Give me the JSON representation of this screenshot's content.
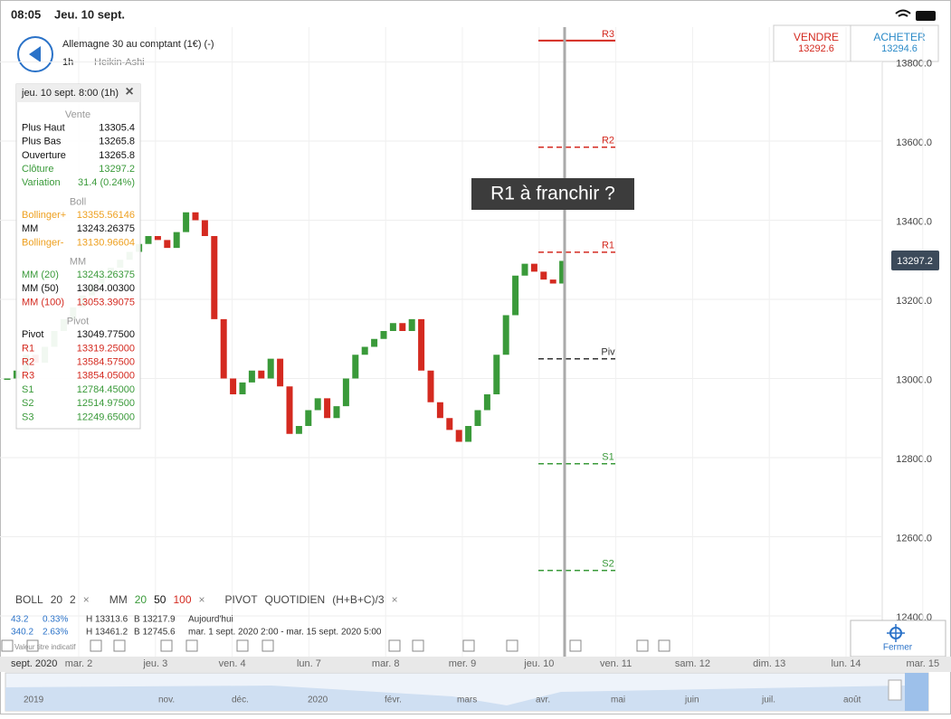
{
  "status": {
    "time": "08:05",
    "date": "Jeu. 10 sept."
  },
  "header": {
    "instrument": "Allemagne 30 au comptant (1€) (-)",
    "interval": "1h",
    "style": "Heikin-Ashi"
  },
  "quote": {
    "sell_label": "VENDRE",
    "sell_price": "13292.6",
    "buy_label": "ACHETER",
    "buy_price": "13294.6"
  },
  "chart_data": {
    "type": "candlestick",
    "annotation": "R1 à franchir ?",
    "last_price": "13297.2",
    "up_color": "#3a9a3a",
    "down_color": "#d42a20",
    "values": [
      13000,
      13020,
      13060,
      13040,
      13080,
      13120,
      13150,
      13180,
      13210,
      13240,
      13260,
      13280,
      13300,
      13320,
      13340,
      13360,
      13350,
      13330,
      13370,
      13420,
      13400,
      13360,
      13150,
      13000,
      12960,
      12990,
      13020,
      13000,
      13050,
      12980,
      12860,
      12880,
      12920,
      12950,
      12900,
      12930,
      13000,
      13060,
      13080,
      13100,
      13120,
      13140,
      13120,
      13150,
      13020,
      12940,
      12900,
      12870,
      12840,
      12880,
      12920,
      12960,
      13060,
      13160,
      13260,
      13290,
      13270,
      13250,
      13240,
      13297.2
    ],
    "ylim": [
      12400,
      13800
    ],
    "yticks": [
      {
        "value": 12400,
        "label": "12400.0"
      },
      {
        "value": 12600,
        "label": "12600.0"
      },
      {
        "value": 12800,
        "label": "12800.0"
      },
      {
        "value": 13000,
        "label": "13000.0"
      },
      {
        "value": 13200,
        "label": "13200.0"
      },
      {
        "value": 13400,
        "label": "13400.0"
      },
      {
        "value": 13600,
        "label": "13600.0"
      },
      {
        "value": 13800,
        "label": "13800.0"
      }
    ],
    "grid": true,
    "levels": [
      {
        "name": "R3",
        "value": 13854.05,
        "color": "#d42a20"
      },
      {
        "name": "R2",
        "value": 13584.575,
        "color": "#d42a20"
      },
      {
        "name": "R1",
        "value": 13319.25,
        "color": "#d42a20"
      },
      {
        "name": "Piv",
        "value": 13049.775,
        "color": "#333333"
      },
      {
        "name": "S1",
        "value": 12784.45,
        "color": "#3a9a3a"
      },
      {
        "name": "S2",
        "value": 12514.975,
        "color": "#3a9a3a"
      }
    ]
  },
  "info_panel": {
    "title": "jeu. 10 sept. 8:00 (1h)",
    "close": "×",
    "sections": [
      {
        "title": "Vente",
        "rows": [
          {
            "label": "Plus Haut",
            "value": "13305.4",
            "color": "#111111"
          },
          {
            "label": "Plus Bas",
            "value": "13265.8",
            "color": "#111111"
          },
          {
            "label": "Ouverture",
            "value": "13265.8",
            "color": "#111111"
          },
          {
            "label": "Clôture",
            "value": "13297.2",
            "color": "#3a9a3a"
          },
          {
            "label": "Variation",
            "value": "31.4 (0.24%)",
            "color": "#3a9a3a"
          }
        ]
      },
      {
        "title": "Boll",
        "rows": [
          {
            "label": "Bollinger+",
            "value": "13355.56146",
            "color": "#eea020"
          },
          {
            "label": "MM",
            "value": "13243.26375",
            "color": "#111111"
          },
          {
            "label": "Bollinger-",
            "value": "13130.96604",
            "color": "#eea020"
          }
        ]
      },
      {
        "title": "MM",
        "rows": [
          {
            "label": "MM (20)",
            "value": "13243.26375",
            "color": "#3a9a3a"
          },
          {
            "label": "MM (50)",
            "value": "13084.00300",
            "color": "#111111"
          },
          {
            "label": "MM (100)",
            "value": "13053.39075",
            "color": "#d42a20"
          }
        ]
      },
      {
        "title": "Pivot",
        "rows": [
          {
            "label": "Pivot",
            "value": "13049.77500",
            "color": "#111111"
          },
          {
            "label": "R1",
            "value": "13319.25000",
            "color": "#d42a20"
          },
          {
            "label": "R2",
            "value": "13584.57500",
            "color": "#d42a20"
          },
          {
            "label": "R3",
            "value": "13854.05000",
            "color": "#d42a20"
          },
          {
            "label": "S1",
            "value": "12784.45000",
            "color": "#3a9a3a"
          },
          {
            "label": "S2",
            "value": "12514.97500",
            "color": "#3a9a3a"
          },
          {
            "label": "S3",
            "value": "12249.65000",
            "color": "#3a9a3a"
          }
        ]
      }
    ]
  },
  "indicator_bar": [
    {
      "items": [
        {
          "text": "BOLL",
          "color": "#444444"
        },
        {
          "text": "20",
          "color": "#444444"
        },
        {
          "text": "2",
          "color": "#444444"
        },
        {
          "text": "×",
          "color": "#888888"
        }
      ]
    },
    {
      "items": [
        {
          "text": "MM",
          "color": "#444444"
        },
        {
          "text": "20",
          "color": "#3a9a3a"
        },
        {
          "text": "50",
          "color": "#111111"
        },
        {
          "text": "100",
          "color": "#d42a20"
        },
        {
          "text": "×",
          "color": "#888888"
        }
      ]
    },
    {
      "items": [
        {
          "text": "PIVOT",
          "color": "#444444"
        },
        {
          "text": "QUOTIDIEN",
          "color": "#444444"
        },
        {
          "text": "(H+B+C)/3",
          "color": "#444444"
        },
        {
          "text": "×",
          "color": "#888888"
        }
      ]
    }
  ],
  "stats": [
    [
      "43.2",
      "0.33%",
      "H 13313.6",
      "B 13217.9",
      "Aujourd'hui"
    ],
    [
      "340.2",
      "2.63%",
      "H 13461.2",
      "B 12745.6",
      "mar. 1 sept. 2020 2:00 - mar. 15 sept. 2020 5:00"
    ]
  ],
  "disclaimer": "Valeur titre indicatif",
  "close_button": "Fermer",
  "time_axis": {
    "period": "sept. 2020",
    "days": [
      "mar. 2",
      "jeu. 3",
      "ven. 4",
      "lun. 7",
      "mar. 8",
      "mer. 9",
      "jeu. 10",
      "ven. 11",
      "sam. 12",
      "dim. 13",
      "lun. 14",
      "mar. 15"
    ]
  },
  "navigator": [
    "2019",
    "nov.",
    "déc.",
    "2020",
    "févr.",
    "mars",
    "avr.",
    "mai",
    "juin",
    "juil.",
    "août"
  ]
}
